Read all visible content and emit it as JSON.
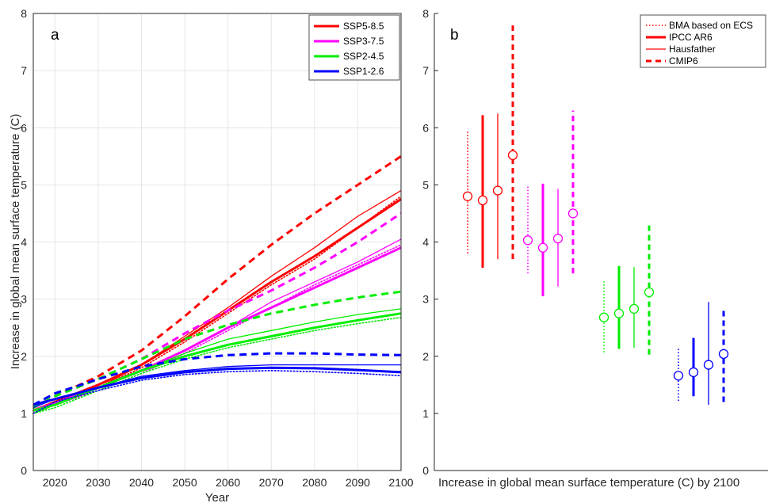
{
  "chart_data": [
    {
      "type": "line",
      "panel_label": "a",
      "xlabel": "Year",
      "ylabel": "Increase in global mean surface temperature (C)",
      "xlim": [
        2015,
        2100
      ],
      "ylim": [
        0,
        8
      ],
      "xticks": [
        2020,
        2030,
        2040,
        2050,
        2060,
        2070,
        2080,
        2090,
        2100
      ],
      "yticks": [
        0,
        1,
        2,
        3,
        4,
        5,
        6,
        7,
        8
      ],
      "grid": true,
      "legend_position": "top-right",
      "legend": [
        "SSP5-8.5",
        "SSP3-7.5",
        "SSP2-4.5",
        "SSP1-2.6"
      ],
      "colors": {
        "SSP5-8.5": "#ff0000",
        "SSP3-7.5": "#ff00ff",
        "SSP2-4.5": "#00ee00",
        "SSP1-2.6": "#0000ff"
      },
      "x": [
        2015,
        2020,
        2030,
        2040,
        2050,
        2060,
        2070,
        2080,
        2090,
        2100
      ],
      "series": [
        {
          "name": "SSP5-8.5",
          "IPCC AR6": [
            1.05,
            1.2,
            1.5,
            1.85,
            2.3,
            2.8,
            3.3,
            3.75,
            4.25,
            4.75
          ],
          "CMIP6": [
            1.1,
            1.3,
            1.65,
            2.1,
            2.7,
            3.35,
            3.95,
            4.5,
            5.0,
            5.5
          ],
          "Hausfather": [
            1.0,
            1.18,
            1.45,
            1.85,
            2.35,
            2.85,
            3.4,
            3.9,
            4.45,
            4.9
          ],
          "BMA based on ECS": [
            1.05,
            1.15,
            1.45,
            1.8,
            2.25,
            2.75,
            3.25,
            3.7,
            4.25,
            4.8
          ]
        },
        {
          "name": "SSP3-7.5",
          "IPCC AR6": [
            1.05,
            1.18,
            1.45,
            1.75,
            2.1,
            2.5,
            2.85,
            3.2,
            3.55,
            3.9
          ],
          "CMIP6": [
            1.1,
            1.3,
            1.6,
            1.95,
            2.4,
            2.8,
            3.15,
            3.55,
            4.0,
            4.5
          ],
          "Hausfather": [
            1.0,
            1.15,
            1.45,
            1.75,
            2.1,
            2.5,
            2.95,
            3.3,
            3.65,
            4.05
          ],
          "BMA based on ECS": [
            1.0,
            1.15,
            1.4,
            1.7,
            2.05,
            2.45,
            2.85,
            3.25,
            3.6,
            3.95
          ]
        },
        {
          "name": "SSP2-4.5",
          "IPCC AR6": [
            1.05,
            1.15,
            1.45,
            1.75,
            2.0,
            2.2,
            2.35,
            2.5,
            2.63,
            2.75
          ],
          "CMIP6": [
            1.1,
            1.3,
            1.6,
            1.95,
            2.3,
            2.55,
            2.75,
            2.9,
            3.03,
            3.13
          ],
          "Hausfather": [
            1.0,
            1.15,
            1.45,
            1.75,
            2.05,
            2.3,
            2.45,
            2.6,
            2.73,
            2.83
          ],
          "BMA based on ECS": [
            1.0,
            1.1,
            1.4,
            1.7,
            1.95,
            2.15,
            2.3,
            2.45,
            2.57,
            2.68
          ]
        },
        {
          "name": "SSP1-2.6",
          "IPCC AR6": [
            1.15,
            1.25,
            1.45,
            1.62,
            1.72,
            1.78,
            1.8,
            1.79,
            1.76,
            1.72
          ],
          "CMIP6": [
            1.15,
            1.35,
            1.6,
            1.82,
            1.95,
            2.02,
            2.05,
            2.05,
            2.03,
            2.02
          ],
          "Hausfather": [
            1.1,
            1.25,
            1.45,
            1.65,
            1.75,
            1.82,
            1.85,
            1.85,
            1.85,
            1.85
          ],
          "BMA based on ECS": [
            1.0,
            1.2,
            1.4,
            1.58,
            1.68,
            1.73,
            1.75,
            1.73,
            1.7,
            1.66
          ]
        }
      ]
    },
    {
      "type": "errorbar",
      "panel_label": "b",
      "xlabel": "Increase in global mean surface temperature (C) by 2100",
      "ylim": [
        0,
        8
      ],
      "yticks": [
        0,
        1,
        2,
        3,
        4,
        5,
        6,
        7,
        8
      ],
      "grid": false,
      "legend_position": "top-right",
      "legend": [
        "BMA based on ECS",
        "IPCC AR6",
        "Hausfather",
        "CMIP6"
      ],
      "groups": [
        {
          "scenario": "SSP5-8.5",
          "color": "#ff0000",
          "estimates": [
            {
              "method": "BMA based on ECS",
              "median": 4.8,
              "low": 3.8,
              "high": 5.95
            },
            {
              "method": "IPCC AR6",
              "median": 4.73,
              "low": 3.55,
              "high": 6.22
            },
            {
              "method": "Hausfather",
              "median": 4.9,
              "low": 3.7,
              "high": 6.25
            },
            {
              "method": "CMIP6",
              "median": 5.52,
              "low": 3.7,
              "high": 7.82
            }
          ]
        },
        {
          "scenario": "SSP3-7.5",
          "color": "#ff00ff",
          "estimates": [
            {
              "method": "BMA based on ECS",
              "median": 4.03,
              "low": 3.45,
              "high": 4.98
            },
            {
              "method": "IPCC AR6",
              "median": 3.9,
              "low": 3.05,
              "high": 5.02
            },
            {
              "method": "Hausfather",
              "median": 4.06,
              "low": 3.22,
              "high": 4.93
            },
            {
              "method": "CMIP6",
              "median": 4.5,
              "low": 3.45,
              "high": 6.3
            }
          ]
        },
        {
          "scenario": "SSP2-4.5",
          "color": "#00ee00",
          "estimates": [
            {
              "method": "BMA based on ECS",
              "median": 2.68,
              "low": 2.07,
              "high": 3.33
            },
            {
              "method": "IPCC AR6",
              "median": 2.75,
              "low": 2.13,
              "high": 3.58
            },
            {
              "method": "Hausfather",
              "median": 2.83,
              "low": 2.15,
              "high": 3.56
            },
            {
              "method": "CMIP6",
              "median": 3.12,
              "low": 2.03,
              "high": 4.3
            }
          ]
        },
        {
          "scenario": "SSP1-2.6",
          "color": "#0000ff",
          "estimates": [
            {
              "method": "BMA based on ECS",
              "median": 1.66,
              "low": 1.22,
              "high": 2.13
            },
            {
              "method": "IPCC AR6",
              "median": 1.72,
              "low": 1.3,
              "high": 2.32
            },
            {
              "method": "Hausfather",
              "median": 1.85,
              "low": 1.15,
              "high": 2.95
            },
            {
              "method": "CMIP6",
              "median": 2.04,
              "low": 1.2,
              "high": 2.8
            }
          ]
        }
      ]
    }
  ]
}
